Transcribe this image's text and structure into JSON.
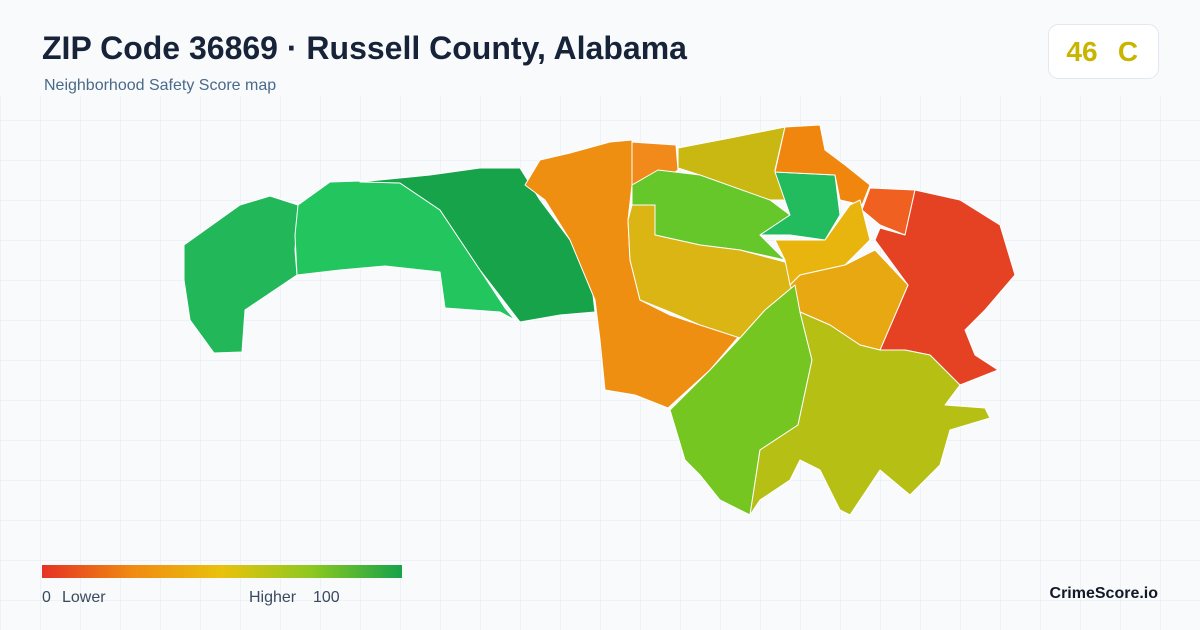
{
  "header": {
    "title": "ZIP Code 36869 · Russell County, Alabama",
    "subtitle": "Neighborhood Safety Score map"
  },
  "badge": {
    "score": "46",
    "grade": "C"
  },
  "legend": {
    "min": "0",
    "min_label": "Lower",
    "max_label": "Higher",
    "max": "100"
  },
  "brand": "CrimeScore.io"
}
